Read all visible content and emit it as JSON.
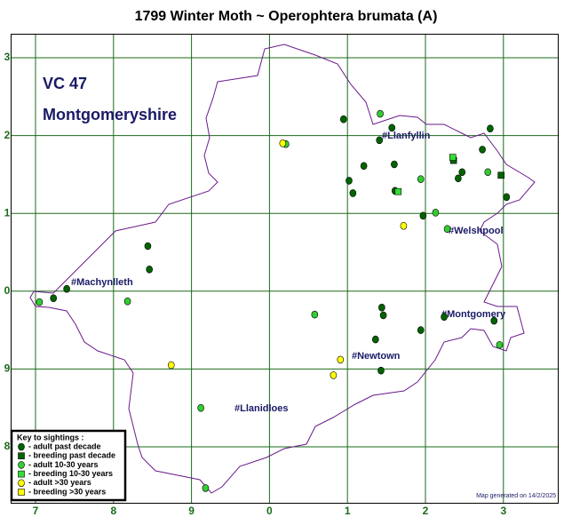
{
  "title": "1799 Winter Moth ~ Operophtera brumata (A)",
  "vc": "VC 47",
  "county": "Montgomeryshire",
  "grid": {
    "xticks": [
      {
        "value": 0,
        "label": "7"
      },
      {
        "value": 1,
        "label": "8"
      },
      {
        "value": 2,
        "label": "9"
      },
      {
        "value": 3,
        "label": "0"
      },
      {
        "value": 4,
        "label": "1"
      },
      {
        "value": 5,
        "label": "2"
      },
      {
        "value": 6,
        "label": "3"
      }
    ],
    "yticks": [
      {
        "value": 0,
        "label": "8"
      },
      {
        "value": 1,
        "label": "9"
      },
      {
        "value": 2,
        "label": "0"
      },
      {
        "value": 3,
        "label": "1"
      },
      {
        "value": 4,
        "label": "2"
      },
      {
        "value": 5,
        "label": "3"
      }
    ]
  },
  "places": [
    "#Llanfyllin",
    "#Welshpool",
    "#Machynlleth",
    "#Montgomery",
    "#Newtown",
    "#Llanidloes"
  ],
  "key": {
    "title": "Key to sightings :",
    "items": [
      {
        "label": "- adult past decade",
        "shape": "circle",
        "color": "#006400",
        "x": [
          3.95,
          4.41,
          4.57,
          4.21,
          4.02,
          4.07,
          4.6,
          4.61,
          4.97,
          5.42,
          5.47,
          5.73,
          5.83,
          6.04,
          1.44,
          1.46,
          0.4,
          0.23,
          4.44,
          4.46,
          4.36,
          4.94,
          4.43,
          5.88,
          5.24
        ],
        "y": [
          4.21,
          3.94,
          4.1,
          3.61,
          3.42,
          3.26,
          3.63,
          3.29,
          2.97,
          3.45,
          3.53,
          3.82,
          4.09,
          3.21,
          2.58,
          2.28,
          2.03,
          1.91,
          1.79,
          1.69,
          1.38,
          1.5,
          0.98,
          1.62,
          1.67
        ]
      },
      {
        "label": "- breeding past decade",
        "shape": "square",
        "color": "#006400",
        "x": [
          5.97,
          5.36
        ],
        "y": [
          3.49,
          3.68
        ]
      },
      {
        "label": "- adult 10-30 years",
        "shape": "circle",
        "color": "#33cc33",
        "x": [
          4.42,
          4.94,
          5.13,
          5.28,
          5.8,
          1.18,
          3.58,
          2.12,
          2.18,
          5.95,
          0.05,
          3.21
        ],
        "y": [
          4.28,
          3.44,
          3.01,
          2.8,
          3.53,
          1.87,
          1.7,
          0.5,
          -0.53,
          1.31,
          1.86,
          3.89
        ]
      },
      {
        "label": "- breeding 10-30 years",
        "shape": "square",
        "color": "#33dd33",
        "x": [
          4.65,
          5.35
        ],
        "y": [
          3.28,
          3.72
        ]
      },
      {
        "label": "- adult >30 years",
        "shape": "circle",
        "color": "#ffff00",
        "x": [
          3.17,
          4.72,
          3.91,
          3.82,
          1.74
        ],
        "y": [
          3.9,
          2.84,
          1.12,
          0.92,
          1.05
        ]
      },
      {
        "label": "- breeding >30 years",
        "shape": "square",
        "color": "#ffff00",
        "x": [],
        "y": []
      }
    ]
  },
  "footer": "Map generated on 14/2/2025"
}
